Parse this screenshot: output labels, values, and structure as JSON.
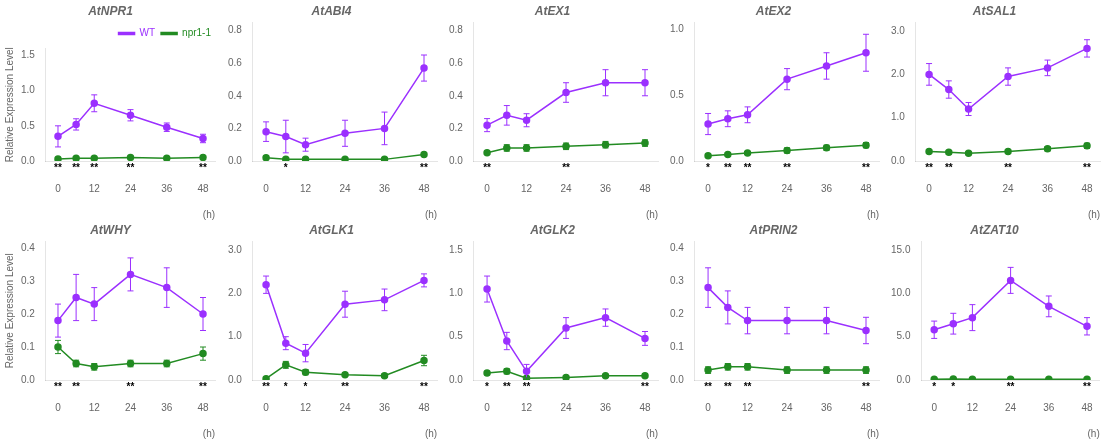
{
  "chart_data": [
    {
      "type": "line",
      "title": "AtNPR1",
      "x": [
        0,
        6,
        12,
        24,
        36,
        48
      ],
      "series": [
        {
          "name": "WT",
          "color": "#9B30FF",
          "marker": "circle",
          "values": [
            0.35,
            0.52,
            0.82,
            0.65,
            0.48,
            0.32
          ],
          "errors": [
            0.15,
            0.08,
            0.12,
            0.08,
            0.06,
            0.06
          ]
        },
        {
          "name": "npr1-1",
          "color": "#228B22",
          "marker": "circle",
          "values": [
            0.03,
            0.04,
            0.04,
            0.05,
            0.04,
            0.05
          ],
          "errors": [
            0.02,
            0.01,
            0.01,
            0.01,
            0.01,
            0.01
          ]
        }
      ],
      "xlim": [
        -4,
        52
      ],
      "xticks": [
        0,
        12,
        24,
        36,
        48
      ],
      "xlabel": "(h)",
      "ylim": [
        0,
        1.6
      ],
      "yticks": [
        {
          "value": 0.0,
          "label": "0.0"
        },
        0.5,
        {
          "value": 1.0,
          "label": "1.0"
        },
        1.5
      ],
      "ylabel": "Relative Expression Level",
      "grid": false,
      "legend": "upper right",
      "annotations": [
        {
          "x": 0,
          "text": "**"
        },
        {
          "x": 6,
          "text": "**"
        },
        {
          "x": 12,
          "text": "**"
        },
        {
          "x": 24,
          "text": "**"
        },
        {
          "x": 48,
          "text": "**"
        }
      ]
    },
    {
      "type": "line",
      "title": "AtABI4",
      "x": [
        0,
        6,
        12,
        24,
        36,
        48
      ],
      "series": [
        {
          "color": "#9B30FF",
          "marker": "circle",
          "values": [
            0.18,
            0.15,
            0.1,
            0.17,
            0.2,
            0.57
          ],
          "errors": [
            0.06,
            0.1,
            0.04,
            0.08,
            0.1,
            0.08
          ]
        },
        {
          "color": "#228B22",
          "marker": "circle",
          "values": [
            0.02,
            0.01,
            0.01,
            0.01,
            0.01,
            0.04
          ],
          "errors": [
            0.01,
            0.005,
            0.005,
            0.005,
            0.005,
            0.01
          ]
        }
      ],
      "xlim": [
        -4,
        52
      ],
      "xticks": [
        0,
        12,
        24,
        36,
        48
      ],
      "xlabel": "(h)",
      "ylim": [
        0,
        0.85
      ],
      "yticks": [
        {
          "value": 0.0,
          "label": "0.0"
        },
        0.2,
        0.4,
        0.6,
        0.8
      ],
      "grid": false,
      "annotations": [
        {
          "x": 6,
          "text": "*"
        },
        {
          "x": 48,
          "text": "**"
        }
      ]
    },
    {
      "type": "line",
      "title": "AtEX1",
      "x": [
        0,
        6,
        12,
        24,
        36,
        48
      ],
      "series": [
        {
          "color": "#9B30FF",
          "marker": "circle",
          "values": [
            0.22,
            0.28,
            0.25,
            0.42,
            0.48,
            0.48
          ],
          "errors": [
            0.04,
            0.06,
            0.04,
            0.06,
            0.08,
            0.08
          ]
        },
        {
          "color": "#228B22",
          "marker": "circle",
          "values": [
            0.05,
            0.08,
            0.08,
            0.09,
            0.1,
            0.11
          ],
          "errors": [
            0.01,
            0.02,
            0.02,
            0.02,
            0.02,
            0.02
          ]
        }
      ],
      "xlim": [
        -4,
        52
      ],
      "xticks": [
        0,
        12,
        24,
        36,
        48
      ],
      "xlabel": "(h)",
      "ylim": [
        0,
        0.85
      ],
      "yticks": [
        {
          "value": 0.0,
          "label": "0.0"
        },
        0.2,
        0.4,
        0.6,
        0.8
      ],
      "grid": false,
      "annotations": [
        {
          "x": 0,
          "text": "**"
        },
        {
          "x": 24,
          "text": "**"
        }
      ]
    },
    {
      "type": "line",
      "title": "AtEX2",
      "x": [
        0,
        6,
        12,
        24,
        36,
        48
      ],
      "series": [
        {
          "color": "#9B30FF",
          "marker": "circle",
          "values": [
            0.28,
            0.32,
            0.35,
            0.62,
            0.72,
            0.82
          ],
          "errors": [
            0.08,
            0.06,
            0.06,
            0.08,
            0.1,
            0.14
          ]
        },
        {
          "color": "#228B22",
          "marker": "circle",
          "values": [
            0.04,
            0.05,
            0.06,
            0.08,
            0.1,
            0.12
          ],
          "errors": [
            0.01,
            0.01,
            0.01,
            0.02,
            0.02,
            0.02
          ]
        }
      ],
      "xlim": [
        -4,
        52
      ],
      "xticks": [
        0,
        12,
        24,
        36,
        48
      ],
      "xlabel": "(h)",
      "ylim": [
        0,
        1.05
      ],
      "yticks": [
        {
          "value": 0.0,
          "label": "0.0"
        },
        0.5,
        {
          "value": 1.0,
          "label": "1.0"
        }
      ],
      "grid": false,
      "annotations": [
        {
          "x": 0,
          "text": "*"
        },
        {
          "x": 6,
          "text": "**"
        },
        {
          "x": 12,
          "text": "**"
        },
        {
          "x": 24,
          "text": "**"
        },
        {
          "x": 48,
          "text": "**"
        }
      ]
    },
    {
      "type": "line",
      "title": "AtSAL1",
      "x": [
        0,
        6,
        12,
        24,
        36,
        48
      ],
      "series": [
        {
          "color": "#9B30FF",
          "marker": "circle",
          "values": [
            2.0,
            1.65,
            1.2,
            1.95,
            2.15,
            2.6
          ],
          "errors": [
            0.25,
            0.2,
            0.15,
            0.2,
            0.18,
            0.2
          ]
        },
        {
          "color": "#228B22",
          "marker": "circle",
          "values": [
            0.22,
            0.2,
            0.18,
            0.22,
            0.28,
            0.35
          ],
          "errors": [
            0.04,
            0.04,
            0.03,
            0.04,
            0.05,
            0.06
          ]
        }
      ],
      "xlim": [
        -4,
        52
      ],
      "xticks": [
        0,
        12,
        24,
        36,
        48
      ],
      "xlabel": "(h)",
      "ylim": [
        0,
        3.2
      ],
      "yticks": [
        {
          "value": 0.0,
          "label": "0.0"
        },
        {
          "value": 1.0,
          "label": "1.0"
        },
        {
          "value": 2.0,
          "label": "2.0"
        },
        {
          "value": 3.0,
          "label": "3.0"
        }
      ],
      "grid": false,
      "annotations": [
        {
          "x": 0,
          "text": "**"
        },
        {
          "x": 6,
          "text": "**"
        },
        {
          "x": 24,
          "text": "**"
        },
        {
          "x": 48,
          "text": "**"
        }
      ]
    },
    {
      "type": "line",
      "title": "AtWHY",
      "x": [
        0,
        6,
        12,
        24,
        36,
        48
      ],
      "series": [
        {
          "color": "#9B30FF",
          "marker": "circle",
          "values": [
            0.18,
            0.25,
            0.23,
            0.32,
            0.28,
            0.2
          ],
          "errors": [
            0.05,
            0.07,
            0.05,
            0.05,
            0.06,
            0.05
          ]
        },
        {
          "color": "#228B22",
          "marker": "circle",
          "values": [
            0.1,
            0.05,
            0.04,
            0.05,
            0.05,
            0.08
          ],
          "errors": [
            0.02,
            0.01,
            0.01,
            0.01,
            0.01,
            0.02
          ]
        }
      ],
      "xlim": [
        -4,
        52
      ],
      "xticks": [
        0,
        12,
        24,
        36,
        48
      ],
      "xlabel": "(h)",
      "ylim": [
        0,
        0.42
      ],
      "yticks": [
        {
          "value": 0.0,
          "label": "0.0"
        },
        0.1,
        0.2,
        0.3,
        0.4
      ],
      "ylabel": "Relative Expression Level",
      "grid": false,
      "annotations": [
        {
          "x": 0,
          "text": "**"
        },
        {
          "x": 6,
          "text": "**"
        },
        {
          "x": 24,
          "text": "**"
        },
        {
          "x": 48,
          "text": "**"
        }
      ]
    },
    {
      "type": "line",
      "title": "AtGLK1",
      "x": [
        0,
        6,
        12,
        24,
        36,
        48
      ],
      "series": [
        {
          "color": "#9B30FF",
          "marker": "circle",
          "values": [
            2.2,
            0.85,
            0.62,
            1.75,
            1.85,
            2.3
          ],
          "errors": [
            0.2,
            0.15,
            0.2,
            0.3,
            0.25,
            0.15
          ]
        },
        {
          "color": "#228B22",
          "marker": "circle",
          "values": [
            0.03,
            0.35,
            0.18,
            0.12,
            0.1,
            0.45
          ],
          "errors": [
            0.01,
            0.08,
            0.06,
            0.04,
            0.04,
            0.12
          ]
        }
      ],
      "xlim": [
        -4,
        52
      ],
      "xticks": [
        0,
        12,
        24,
        36,
        48
      ],
      "xlabel": "(h)",
      "ylim": [
        0,
        3.2
      ],
      "yticks": [
        {
          "value": 0.0,
          "label": "0.0"
        },
        {
          "value": 1.0,
          "label": "1.0"
        },
        {
          "value": 2.0,
          "label": "2.0"
        },
        {
          "value": 3.0,
          "label": "3.0"
        }
      ],
      "grid": false,
      "annotations": [
        {
          "x": 0,
          "text": "**"
        },
        {
          "x": 6,
          "text": "*"
        },
        {
          "x": 12,
          "text": "*"
        },
        {
          "x": 24,
          "text": "**"
        },
        {
          "x": 48,
          "text": "**"
        }
      ]
    },
    {
      "type": "line",
      "title": "AtGLK2",
      "x": [
        0,
        6,
        12,
        24,
        36,
        48
      ],
      "series": [
        {
          "color": "#9B30FF",
          "marker": "circle",
          "values": [
            1.05,
            0.45,
            0.1,
            0.6,
            0.72,
            0.48
          ],
          "errors": [
            0.15,
            0.1,
            0.08,
            0.12,
            0.1,
            0.08
          ]
        },
        {
          "color": "#228B22",
          "marker": "circle",
          "values": [
            0.08,
            0.1,
            0.02,
            0.03,
            0.05,
            0.05
          ],
          "errors": [
            0.02,
            0.03,
            0.005,
            0.01,
            0.01,
            0.01
          ]
        }
      ],
      "xlim": [
        -4,
        52
      ],
      "xticks": [
        0,
        12,
        24,
        36,
        48
      ],
      "xlabel": "(h)",
      "ylim": [
        0,
        1.6
      ],
      "yticks": [
        {
          "value": 0.0,
          "label": "0.0"
        },
        0.5,
        {
          "value": 1.0,
          "label": "1.0"
        },
        1.5
      ],
      "grid": false,
      "annotations": [
        {
          "x": 0,
          "text": "*"
        },
        {
          "x": 6,
          "text": "**"
        },
        {
          "x": 12,
          "text": "**"
        },
        {
          "x": 48,
          "text": "**"
        }
      ]
    },
    {
      "type": "line",
      "title": "AtPRIN2",
      "x": [
        0,
        6,
        12,
        24,
        36,
        48
      ],
      "series": [
        {
          "color": "#9B30FF",
          "marker": "circle",
          "values": [
            0.28,
            0.22,
            0.18,
            0.18,
            0.18,
            0.15
          ],
          "errors": [
            0.06,
            0.05,
            0.04,
            0.04,
            0.04,
            0.04
          ]
        },
        {
          "color": "#228B22",
          "marker": "circle",
          "values": [
            0.03,
            0.04,
            0.04,
            0.03,
            0.03,
            0.03
          ],
          "errors": [
            0.01,
            0.01,
            0.01,
            0.01,
            0.01,
            0.01
          ]
        }
      ],
      "xlim": [
        -4,
        52
      ],
      "xticks": [
        0,
        12,
        24,
        36,
        48
      ],
      "xlabel": "(h)",
      "ylim": [
        0,
        0.42
      ],
      "yticks": [
        {
          "value": 0.0,
          "label": "0.0"
        },
        0.1,
        0.2,
        0.3,
        0.4
      ],
      "grid": false,
      "annotations": [
        {
          "x": 0,
          "text": "**"
        },
        {
          "x": 6,
          "text": "**"
        },
        {
          "x": 12,
          "text": "**"
        },
        {
          "x": 48,
          "text": "**"
        }
      ]
    },
    {
      "type": "line",
      "title": "AtZAT10",
      "x": [
        0,
        6,
        12,
        24,
        36,
        48
      ],
      "series": [
        {
          "color": "#9B30FF",
          "marker": "circle",
          "values": [
            5.8,
            6.5,
            7.2,
            11.5,
            8.5,
            6.2
          ],
          "errors": [
            1.0,
            1.2,
            1.5,
            1.5,
            1.2,
            1.0
          ]
        },
        {
          "color": "#228B22",
          "marker": "circle",
          "values": [
            0.08,
            0.12,
            0.1,
            0.1,
            0.08,
            0.08
          ],
          "errors": [
            0.02,
            0.03,
            0.02,
            0.02,
            0.02,
            0.02
          ]
        }
      ],
      "xlim": [
        -4,
        52
      ],
      "xticks": [
        0,
        12,
        24,
        36,
        48
      ],
      "xlabel": "(h)",
      "ylim": [
        0,
        16
      ],
      "yticks": [
        {
          "value": 0.0,
          "label": "0.0"
        },
        {
          "value": 5.0,
          "label": "5.0"
        },
        {
          "value": 10.0,
          "label": "10.0"
        },
        {
          "value": 15.0,
          "label": "15.0"
        }
      ],
      "grid": false,
      "annotations": [
        {
          "x": 0,
          "text": "*"
        },
        {
          "x": 6,
          "text": "*"
        },
        {
          "x": 24,
          "text": "**"
        },
        {
          "x": 48,
          "text": "**"
        }
      ]
    }
  ]
}
